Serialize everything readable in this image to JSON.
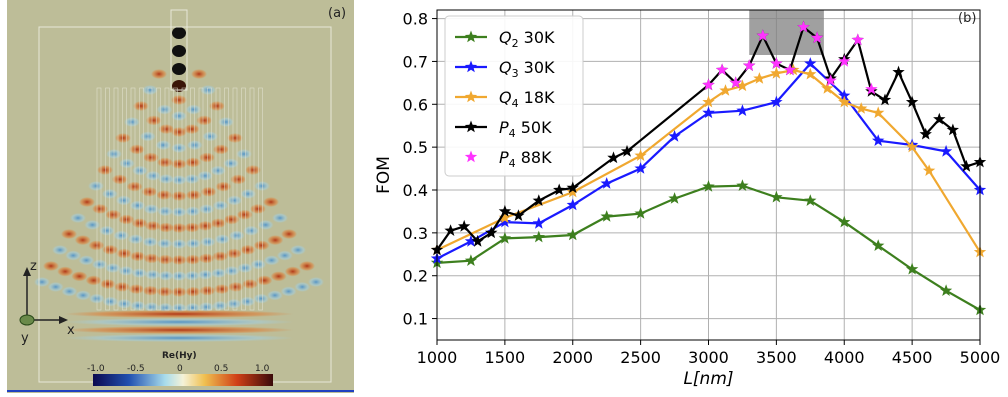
{
  "panel_a": {
    "label": "(a)",
    "colorbar_title": "Re(Hy)",
    "colorbar_ticks": [
      "-1.0",
      "-0.5",
      "0",
      "0.5",
      "1.0"
    ],
    "axes": {
      "z": "z",
      "x": "x",
      "y": "y"
    },
    "background_color": "#bfbf9a"
  },
  "chart_data": {
    "type": "line",
    "panel_label": "(b)",
    "xlabel": "L[nm]",
    "ylabel": "FOM",
    "xlim": [
      1000,
      5000
    ],
    "ylim": [
      0.05,
      0.82
    ],
    "xticks": [
      1000,
      1500,
      2000,
      2500,
      3000,
      3500,
      4000,
      4500,
      5000
    ],
    "yticks": [
      0.1,
      0.2,
      0.3,
      0.4,
      0.5,
      0.6,
      0.7,
      0.8
    ],
    "grid": true,
    "legend_position": "top-left",
    "highlight_region": {
      "x": [
        3300,
        3850
      ],
      "y": [
        0.715,
        0.82
      ],
      "color": "#808080"
    },
    "series": [
      {
        "name": "Q2 30K",
        "label_var": "Q",
        "label_sub": "2",
        "label_rest": " 30K",
        "color": "#3d7f1e",
        "line": true,
        "marker": "star",
        "x": [
          1000,
          1250,
          1500,
          1750,
          2000,
          2250,
          2500,
          2750,
          3000,
          3250,
          3500,
          3750,
          4000,
          4250,
          4500,
          4750,
          5000
        ],
        "y": [
          0.23,
          0.235,
          0.287,
          0.29,
          0.295,
          0.338,
          0.345,
          0.38,
          0.408,
          0.41,
          0.383,
          0.375,
          0.325,
          0.27,
          0.215,
          0.165,
          0.12
        ]
      },
      {
        "name": "Q3 30K",
        "label_var": "Q",
        "label_sub": "3",
        "label_rest": " 30K",
        "color": "#1a1aff",
        "line": true,
        "marker": "star",
        "x": [
          1000,
          1250,
          1500,
          1750,
          2000,
          2250,
          2500,
          2750,
          3000,
          3250,
          3500,
          3750,
          4000,
          4250,
          4500,
          4750,
          5000
        ],
        "y": [
          0.24,
          0.28,
          0.325,
          0.322,
          0.365,
          0.415,
          0.45,
          0.525,
          0.58,
          0.585,
          0.605,
          0.695,
          0.62,
          0.515,
          0.505,
          0.49,
          0.4
        ]
      },
      {
        "name": "Q4 18K",
        "label_var": "Q",
        "label_sub": "4",
        "label_rest": " 18K",
        "color": "#f0a830",
        "line": true,
        "marker": "star",
        "x": [
          1000,
          1500,
          2000,
          2500,
          3000,
          3125,
          3250,
          3375,
          3500,
          3625,
          3750,
          3875,
          4000,
          4125,
          4250,
          4500,
          4625,
          5000
        ],
        "y": [
          0.26,
          0.335,
          0.395,
          0.48,
          0.605,
          0.632,
          0.643,
          0.66,
          0.672,
          0.68,
          0.67,
          0.637,
          0.605,
          0.59,
          0.58,
          0.5,
          0.445,
          0.255
        ]
      },
      {
        "name": "P4 50K",
        "label_var": "P",
        "label_sub": "4",
        "label_rest": " 50K",
        "color": "#000000",
        "line": true,
        "marker": "star",
        "x": [
          1000,
          1100,
          1200,
          1300,
          1400,
          1500,
          1600,
          1750,
          1900,
          2000,
          2300,
          2400,
          3000,
          3100,
          3200,
          3300,
          3400,
          3500,
          3600,
          3700,
          3800,
          3900,
          4000,
          4100,
          4200,
          4300,
          4400,
          4500,
          4600,
          4700,
          4800,
          4900,
          5000
        ],
        "y": [
          0.26,
          0.305,
          0.315,
          0.28,
          0.3,
          0.35,
          0.34,
          0.375,
          0.4,
          0.405,
          0.475,
          0.49,
          0.645,
          0.68,
          0.65,
          0.69,
          0.76,
          0.695,
          0.68,
          0.78,
          0.755,
          0.66,
          0.705,
          0.75,
          0.63,
          0.61,
          0.675,
          0.605,
          0.53,
          0.565,
          0.54,
          0.455,
          0.465
        ]
      },
      {
        "name": "P4 88K",
        "label_var": "P",
        "label_sub": "4",
        "label_rest": " 88K",
        "color": "#ff33ff",
        "line": false,
        "marker": "star",
        "x": [
          3000,
          3100,
          3200,
          3300,
          3400,
          3500,
          3600,
          3700,
          3800,
          3900,
          4000,
          4100,
          4200
        ],
        "y": [
          0.645,
          0.68,
          0.65,
          0.69,
          0.76,
          0.695,
          0.68,
          0.78,
          0.755,
          0.655,
          0.7,
          0.75,
          0.635
        ]
      }
    ]
  }
}
